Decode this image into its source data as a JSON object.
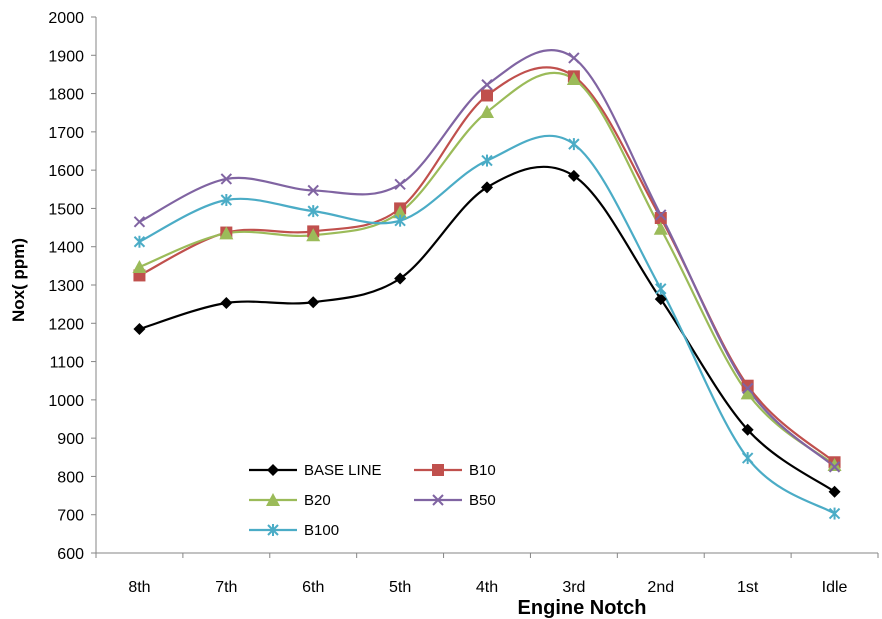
{
  "chart_data": {
    "type": "line",
    "title": "",
    "xlabel": "Engine Notch",
    "ylabel": "Nox( ppm)",
    "categories": [
      "8th",
      "7th",
      "6th",
      "5th",
      "4th",
      "3rd",
      "2nd",
      "1st",
      "Idle"
    ],
    "ylim": [
      600,
      2000
    ],
    "yticks": [
      600,
      700,
      800,
      900,
      1000,
      1100,
      1200,
      1300,
      1400,
      1500,
      1600,
      1700,
      1800,
      1900,
      2000
    ],
    "grid": false,
    "smooth": true,
    "legend_position": "bottom-left",
    "series": [
      {
        "name": "BASE LINE",
        "color": "#000000",
        "marker": "diamond",
        "values": [
          1185,
          1253,
          1255,
          1317,
          1555,
          1585,
          1263,
          922,
          760
        ]
      },
      {
        "name": "B10",
        "color": "#C0504D",
        "marker": "square",
        "values": [
          1325,
          1437,
          1440,
          1500,
          1795,
          1845,
          1475,
          1037,
          837
        ]
      },
      {
        "name": "B20",
        "color": "#9BBB59",
        "marker": "triangle",
        "values": [
          1347,
          1435,
          1430,
          1490,
          1752,
          1838,
          1447,
          1017,
          830
        ]
      },
      {
        "name": "B50",
        "color": "#8064A2",
        "marker": "x",
        "values": [
          1465,
          1577,
          1547,
          1563,
          1823,
          1893,
          1483,
          1030,
          825
        ]
      },
      {
        "name": "B100",
        "color": "#4BACC6",
        "marker": "star",
        "values": [
          1413,
          1522,
          1493,
          1468,
          1625,
          1668,
          1290,
          848,
          703
        ]
      }
    ]
  }
}
